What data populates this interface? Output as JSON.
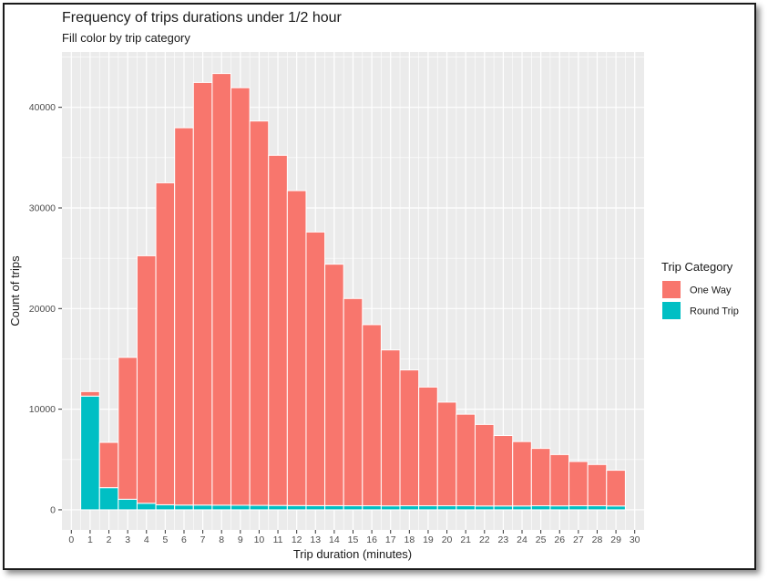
{
  "chart_data": {
    "type": "bar",
    "stacked": true,
    "title": "Frequency of trips durations under 1/2 hour",
    "subtitle": "Fill color by trip category",
    "xlabel": "Trip duration (minutes)",
    "ylabel": "Count of trips",
    "xlim": [
      -0.5,
      30.5
    ],
    "ylim": [
      -2000,
      45500
    ],
    "x_ticks": [
      "0",
      "1",
      "2",
      "3",
      "4",
      "5",
      "6",
      "7",
      "8",
      "9",
      "10",
      "11",
      "12",
      "13",
      "14",
      "15",
      "16",
      "17",
      "18",
      "19",
      "20",
      "21",
      "22",
      "23",
      "24",
      "25",
      "26",
      "27",
      "28",
      "29",
      "30"
    ],
    "y_ticks": [
      0,
      10000,
      20000,
      30000,
      40000
    ],
    "y_tick_labels": [
      "0",
      "10000",
      "20000",
      "30000",
      "40000"
    ],
    "grid": true,
    "legend_title": "Trip Category",
    "legend_position": "right",
    "x": [
      1,
      2,
      3,
      4,
      5,
      6,
      7,
      8,
      9,
      10,
      11,
      12,
      13,
      14,
      15,
      16,
      17,
      18,
      19,
      20,
      21,
      22,
      23,
      24,
      25,
      26,
      27,
      28,
      29
    ],
    "series": [
      {
        "name": "One Way",
        "color": "#F8766D",
        "values": [
          450,
          4500,
          14100,
          24600,
          32000,
          37500,
          42000,
          42900,
          41500,
          38200,
          34800,
          31300,
          27200,
          24000,
          20600,
          18000,
          15500,
          13500,
          11800,
          10300,
          9100,
          8100,
          7000,
          6400,
          5700,
          5100,
          4400,
          4100,
          3550
        ]
      },
      {
        "name": "Round Trip",
        "color": "#00BFC4",
        "values": [
          11300,
          2200,
          1050,
          650,
          500,
          470,
          470,
          460,
          450,
          440,
          430,
          420,
          410,
          410,
          400,
          400,
          390,
          400,
          400,
          400,
          400,
          380,
          380,
          380,
          400,
          390,
          400,
          400,
          380
        ]
      }
    ]
  }
}
